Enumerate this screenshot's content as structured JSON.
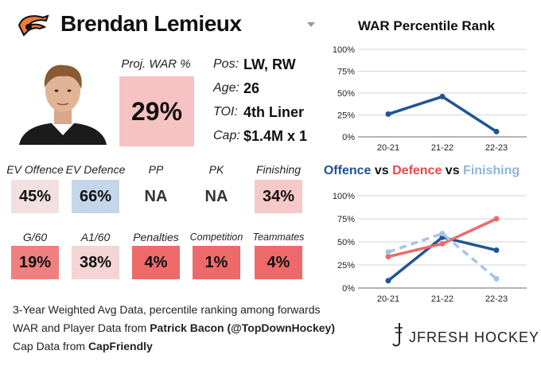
{
  "header": {
    "player_name": "Brendan Lemieux"
  },
  "projected": {
    "label": "Proj. WAR %",
    "value": "29%",
    "color": "#f6c2c2"
  },
  "info": [
    {
      "label": "Pos:",
      "value": "LW, RW"
    },
    {
      "label": "Age:",
      "value": "26"
    },
    {
      "label": "TOI:",
      "value": "4th Liner"
    },
    {
      "label": "Cap:",
      "value": "$1.4M x 1"
    }
  ],
  "stats_row1": [
    {
      "label": "EV Offence",
      "value": "45%",
      "color": "#f2e0e0"
    },
    {
      "label": "EV Defence",
      "value": "66%",
      "color": "#c5d6ea"
    },
    {
      "label": "PP",
      "value": "NA",
      "color": "#ffffff"
    },
    {
      "label": "PK",
      "value": "NA",
      "color": "#ffffff"
    },
    {
      "label": "Finishing",
      "value": "34%",
      "color": "#f6c8c8"
    }
  ],
  "stats_row2": [
    {
      "label": "G/60",
      "value": "19%",
      "color": "#f08080"
    },
    {
      "label": "A1/60",
      "value": "38%",
      "color": "#f4d4d4"
    },
    {
      "label": "Penalties",
      "value": "4%",
      "color": "#ee6a6a"
    },
    {
      "label": "Competition",
      "value": "1%",
      "color": "#ee6a6a"
    },
    {
      "label": "Teammates",
      "value": "4%",
      "color": "#ee6a6a"
    }
  ],
  "footer": {
    "line1": "3-Year Weighted Avg Data, percentile ranking among forwards",
    "line2_prefix": "WAR and Player Data from ",
    "line2_source": "Patrick Bacon (@TopDownHockey)",
    "line3_prefix": "Cap Data from ",
    "line3_source": "CapFriendly"
  },
  "brand": {
    "name": "JFRESH HOCKEY"
  },
  "chart_data": [
    {
      "type": "line",
      "title": "WAR Percentile Rank",
      "categories": [
        "20-21",
        "21-22",
        "22-23"
      ],
      "series": [
        {
          "values": [
            26,
            46,
            6
          ],
          "color": "#1f5592",
          "dashed": false
        }
      ],
      "ylim": [
        0,
        100
      ],
      "yticks": [
        "0%",
        "25%",
        "50%",
        "75%",
        "100%"
      ],
      "grid": true
    },
    {
      "type": "line",
      "title_parts": [
        {
          "text": "Offence",
          "color": "#1f5592"
        },
        {
          "text": " vs ",
          "color": "#111111"
        },
        {
          "text": "Defence",
          "color": "#e8474a"
        },
        {
          "text": " vs ",
          "color": "#111111"
        },
        {
          "text": "Finishing",
          "color": "#8fb4dc"
        }
      ],
      "categories": [
        "20-21",
        "21-22",
        "22-23"
      ],
      "series": [
        {
          "name": "Offence",
          "values": [
            8,
            55,
            41
          ],
          "color": "#1f5592",
          "dashed": false
        },
        {
          "name": "Defence",
          "values": [
            34,
            48,
            75
          ],
          "color": "#ee6a6a",
          "dashed": false
        },
        {
          "name": "Finishing",
          "values": [
            39,
            59,
            10
          ],
          "color": "#a8c4e2",
          "dashed": true
        }
      ],
      "ylim": [
        0,
        100
      ],
      "yticks": [
        "0%",
        "25%",
        "50%",
        "75%",
        "100%"
      ],
      "grid": true
    }
  ]
}
